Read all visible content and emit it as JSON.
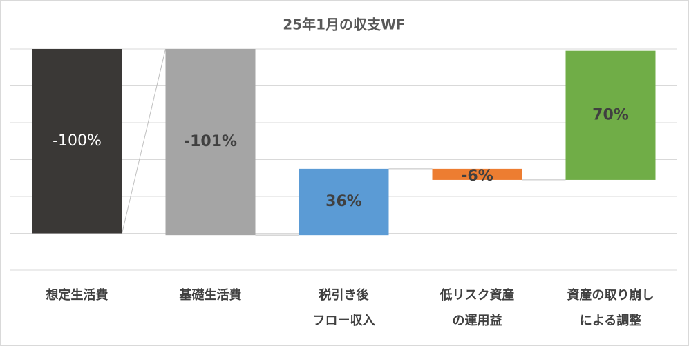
{
  "chart_data": {
    "type": "waterfall",
    "title": "25年1月の収支WF",
    "categories": [
      "想定生活費",
      "基礎生活費",
      "税引き後\nフロー収入",
      "低リスク資産\nの運用益",
      "資産の取り崩し\nによる調整"
    ],
    "values": [
      -100,
      -101,
      36,
      -6,
      70
    ],
    "value_labels": [
      "-100%",
      "-101%",
      "36%",
      "-6%",
      "70%"
    ],
    "totals": [
      true,
      true,
      false,
      false,
      false
    ],
    "colors": [
      "#3a3836",
      "#a5a5a5",
      "#5b9bd5",
      "#ed7d31",
      "#70ad47"
    ],
    "label_colors": [
      "#ffffff",
      "#404040",
      "#404040",
      "#404040",
      "#404040"
    ],
    "ylim": [
      -120,
      0
    ],
    "yticks": [
      -120,
      -100,
      -80,
      -60,
      -40,
      -20,
      0
    ],
    "grid": true
  }
}
